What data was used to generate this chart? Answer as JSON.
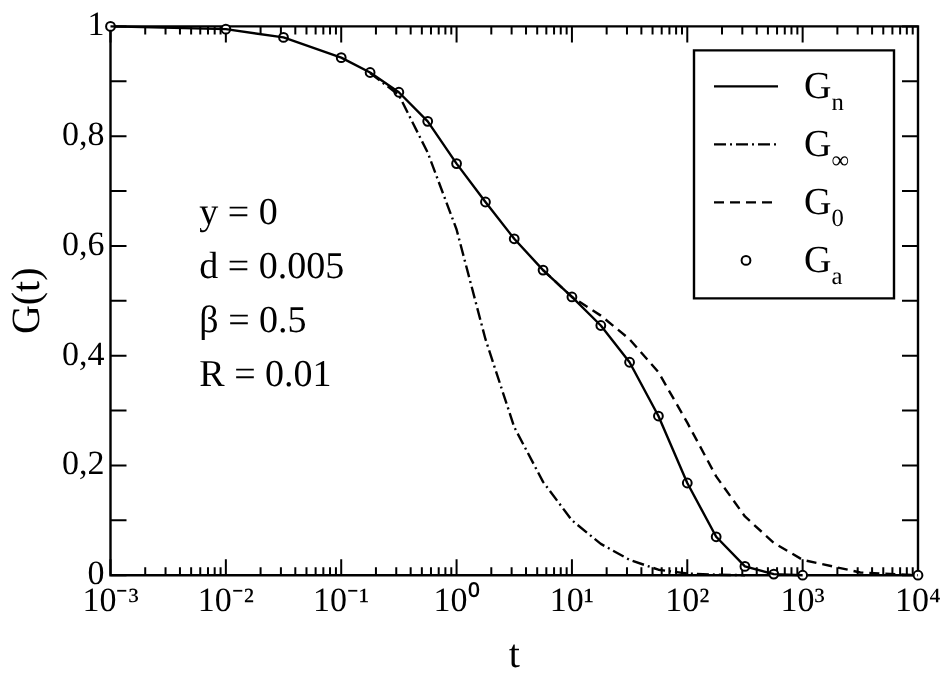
{
  "chart_data": {
    "type": "line",
    "xlabel": "t",
    "ylabel": "G(t)",
    "log": "x",
    "xlim": [
      0.001,
      10000
    ],
    "xticks": [
      {
        "value": 0.001,
        "label": "10⁻³"
      },
      {
        "value": 0.01,
        "label": "10⁻²"
      },
      {
        "value": 0.1,
        "label": "10⁻¹"
      },
      {
        "value": 1,
        "label": "10⁰"
      },
      {
        "value": 10,
        "label": "10¹"
      },
      {
        "value": 100,
        "label": "10²"
      },
      {
        "value": 1000,
        "label": "10³"
      },
      {
        "value": 10000,
        "label": "10⁴"
      }
    ],
    "ylim": [
      0,
      1
    ],
    "yticks": [
      0,
      {
        "value": 0.1,
        "label": null
      },
      {
        "value": 0.2,
        "label": "0,2"
      },
      {
        "value": 0.3,
        "label": null
      },
      {
        "value": 0.4,
        "label": "0,4"
      },
      {
        "value": 0.5,
        "label": null
      },
      {
        "value": 0.6,
        "label": "0,6"
      },
      {
        "value": 0.7,
        "label": null
      },
      {
        "value": 0.8,
        "label": "0,8"
      },
      {
        "value": 0.9,
        "label": null
      },
      1
    ],
    "legend": "top right",
    "annotations": [
      "y = 0",
      "d = 0.005",
      "β = 0.5",
      "R = 0.01"
    ],
    "series": [
      {
        "name": "G$_{n}$",
        "color": "#000000",
        "line_style": "solid",
        "marker": "none",
        "x": [
          0.001,
          0.01,
          0.0316,
          0.1,
          0.178,
          0.316,
          0.562,
          1,
          1.78,
          3.16,
          5.62,
          10,
          17.8,
          31.6,
          56.2,
          100,
          178,
          316,
          562,
          1000
        ],
        "values": [
          1,
          0.995,
          0.98,
          0.943,
          0.916,
          0.88,
          0.827,
          0.75,
          0.68,
          0.613,
          0.556,
          0.507,
          0.455,
          0.388,
          0.29,
          0.168,
          0.07,
          0.016,
          0.002,
          0
        ]
      },
      {
        "name": "G$_{∞}$",
        "color": "#000000",
        "line_style": "dashdot",
        "marker": "none",
        "x": [
          0.178,
          0.316,
          0.562,
          1,
          1.78,
          3.16,
          5.62,
          10,
          17.8,
          31.6,
          56.2,
          100,
          178,
          316
        ],
        "values": [
          0.915,
          0.875,
          0.77,
          0.63,
          0.43,
          0.27,
          0.17,
          0.1,
          0.057,
          0.028,
          0.01,
          0.003,
          0.001,
          0
        ]
      },
      {
        "name": "G$_{0}$",
        "color": "#000000",
        "line_style": "dashed",
        "marker": "none",
        "x": [
          5.62,
          10,
          17.8,
          31.6,
          56.2,
          100,
          178,
          316,
          562,
          1000,
          3160,
          10000
        ],
        "values": [
          0.556,
          0.507,
          0.473,
          0.43,
          0.37,
          0.278,
          0.18,
          0.107,
          0.059,
          0.028,
          0.005,
          0
        ]
      },
      {
        "name": "G$_{a}$",
        "color": "#000000",
        "type": "scatter",
        "marker": "circle",
        "x": [
          0.001,
          0.01,
          0.0316,
          0.1,
          0.178,
          0.316,
          0.562,
          1,
          1.78,
          3.16,
          5.62,
          10,
          17.8,
          31.6,
          56.2,
          100,
          178,
          316,
          562,
          1000,
          10000
        ],
        "values": [
          1,
          0.995,
          0.98,
          0.943,
          0.916,
          0.88,
          0.827,
          0.75,
          0.68,
          0.613,
          0.556,
          0.507,
          0.455,
          0.388,
          0.29,
          0.168,
          0.07,
          0.016,
          0.002,
          0,
          0
        ]
      }
    ]
  }
}
